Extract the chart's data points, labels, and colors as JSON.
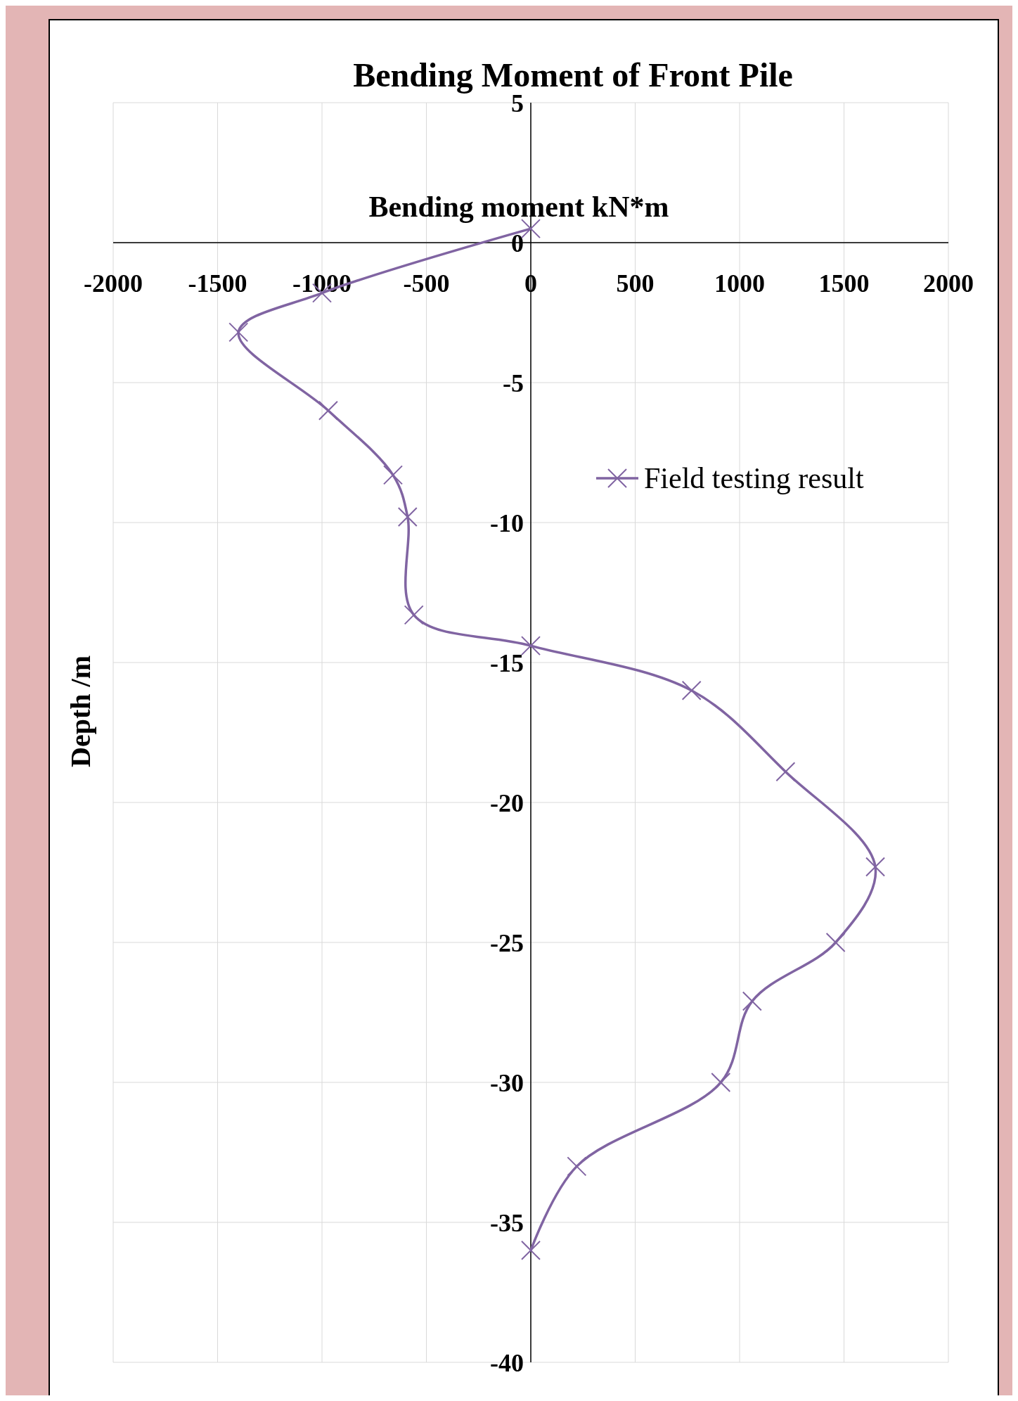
{
  "chart_data": {
    "type": "line",
    "title": "Bending Moment of Front Pile",
    "xlabel": "Bending moment   kN*m",
    "ylabel": "Depth /m",
    "series": [
      {
        "name": "Field testing result",
        "color": "#8064a2",
        "x": [
          0,
          -1000,
          -1400,
          -970,
          -660,
          -590,
          -560,
          0,
          770,
          1220,
          1650,
          1460,
          1060,
          910,
          220,
          0
        ],
        "values": [
          0.5,
          -1.8,
          -3.2,
          -6,
          -8.3,
          -9.8,
          -13.3,
          -14.4,
          -16,
          -18.9,
          -22.3,
          -25,
          -27.1,
          -30,
          -33,
          -36
        ]
      }
    ],
    "xlim": [
      -2000,
      2000
    ],
    "xticks": [
      -2000,
      -1500,
      -1000,
      -500,
      0,
      500,
      1000,
      1500,
      2000
    ],
    "ylim": [
      -40,
      5
    ],
    "yticks": [
      5,
      0,
      -5,
      -10,
      -15,
      -20,
      -25,
      -30,
      -35,
      -40
    ],
    "grid": true,
    "legend": "top right",
    "marker": "cross",
    "line_style": "solid"
  }
}
